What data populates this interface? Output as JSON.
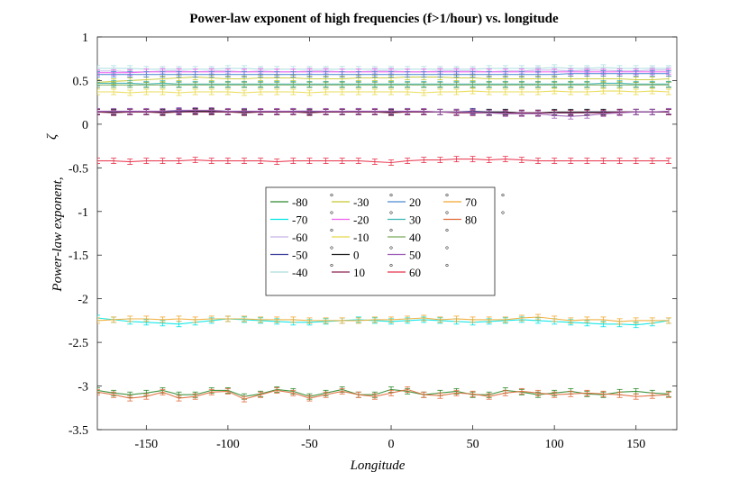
{
  "chart_data": {
    "type": "line",
    "title": "Power-law exponent of high frequencies (f>1/hour) vs. longitude",
    "xlabel": "Longitude",
    "ylabel_main": "Power-law exponent,",
    "ylabel_symbol": "ζ",
    "xlim": [
      -180,
      175
    ],
    "ylim": [
      -3.5,
      1
    ],
    "x_ticks": [
      -150,
      -100,
      -50,
      0,
      50,
      100,
      150
    ],
    "y_ticks": [
      1,
      0.5,
      0,
      -0.5,
      -1,
      -1.5,
      -2,
      -2.5,
      -3,
      -3.5
    ],
    "x": [
      -180,
      -170,
      -160,
      -150,
      -140,
      -130,
      -120,
      -110,
      -100,
      -90,
      -80,
      -70,
      -60,
      -50,
      -40,
      -30,
      -20,
      -10,
      0,
      10,
      20,
      30,
      40,
      50,
      60,
      70,
      80,
      90,
      100,
      110,
      120,
      130,
      140,
      150,
      160,
      170
    ],
    "legend": {
      "location": "inside-center",
      "columns": 4,
      "degree_symbol": "°"
    },
    "series": [
      {
        "name": "-80",
        "color": "#2e8b2e",
        "values": [
          -3.05,
          -3.08,
          -3.1,
          -3.08,
          -3.05,
          -3.1,
          -3.1,
          -3.05,
          -3.05,
          -3.12,
          -3.09,
          -3.04,
          -3.06,
          -3.12,
          -3.08,
          -3.04,
          -3.1,
          -3.1,
          -3.04,
          -3.06,
          -3.1,
          -3.08,
          -3.06,
          -3.1,
          -3.1,
          -3.05,
          -3.07,
          -3.1,
          -3.08,
          -3.06,
          -3.09,
          -3.1,
          -3.07,
          -3.06,
          -3.08,
          -3.09
        ]
      },
      {
        "name": "-70",
        "color": "#00e5e5",
        "values": [
          -2.22,
          -2.24,
          -2.26,
          -2.27,
          -2.28,
          -2.29,
          -2.27,
          -2.25,
          -2.23,
          -2.24,
          -2.25,
          -2.26,
          -2.27,
          -2.27,
          -2.26,
          -2.25,
          -2.24,
          -2.25,
          -2.26,
          -2.25,
          -2.24,
          -2.25,
          -2.26,
          -2.27,
          -2.26,
          -2.25,
          -2.24,
          -2.25,
          -2.26,
          -2.27,
          -2.28,
          -2.29,
          -2.29,
          -2.3,
          -2.28,
          -2.25
        ]
      },
      {
        "name": "-60",
        "color": "#c8b2e8",
        "values": [
          0.61,
          0.61,
          0.6,
          0.6,
          0.61,
          0.61,
          0.6,
          0.61,
          0.61,
          0.6,
          0.61,
          0.6,
          0.6,
          0.61,
          0.61,
          0.6,
          0.6,
          0.61,
          0.61,
          0.6,
          0.6,
          0.61,
          0.61,
          0.61,
          0.6,
          0.61,
          0.61,
          0.62,
          0.62,
          0.61,
          0.62,
          0.62,
          0.61,
          0.61,
          0.62,
          0.62
        ]
      },
      {
        "name": "-50",
        "color": "#3b3b9a",
        "values": [
          0.14,
          0.14,
          0.15,
          0.14,
          0.14,
          0.15,
          0.15,
          0.14,
          0.14,
          0.15,
          0.14,
          0.14,
          0.15,
          0.15,
          0.14,
          0.14,
          0.15,
          0.14,
          0.14,
          0.15,
          0.14,
          0.14,
          0.14,
          0.15,
          0.14,
          0.14,
          0.13,
          0.13,
          0.13,
          0.13,
          0.14,
          0.14,
          0.14,
          0.14,
          0.14,
          0.14
        ]
      },
      {
        "name": "-40",
        "color": "#aadddd",
        "values": [
          0.64,
          0.64,
          0.64,
          0.63,
          0.63,
          0.63,
          0.63,
          0.63,
          0.64,
          0.64,
          0.63,
          0.63,
          0.63,
          0.63,
          0.63,
          0.63,
          0.63,
          0.63,
          0.63,
          0.63,
          0.63,
          0.63,
          0.63,
          0.63,
          0.64,
          0.64,
          0.64,
          0.64,
          0.65,
          0.64,
          0.64,
          0.65,
          0.64,
          0.64,
          0.64,
          0.64
        ]
      },
      {
        "name": "-30",
        "color": "#c8c832",
        "values": [
          0.48,
          0.49,
          0.5,
          0.51,
          0.52,
          0.53,
          0.54,
          0.53,
          0.52,
          0.52,
          0.53,
          0.53,
          0.53,
          0.52,
          0.52,
          0.52,
          0.53,
          0.53,
          0.53,
          0.54,
          0.54,
          0.54,
          0.53,
          0.53,
          0.52,
          0.52,
          0.52,
          0.52,
          0.52,
          0.52,
          0.52,
          0.52,
          0.52,
          0.51,
          0.51,
          0.52
        ]
      },
      {
        "name": "-20",
        "color": "#ee60ee",
        "values": [
          0.59,
          0.59,
          0.59,
          0.6,
          0.6,
          0.6,
          0.6,
          0.6,
          0.6,
          0.6,
          0.6,
          0.6,
          0.6,
          0.6,
          0.6,
          0.6,
          0.6,
          0.6,
          0.6,
          0.6,
          0.6,
          0.6,
          0.6,
          0.6,
          0.6,
          0.6,
          0.6,
          0.6,
          0.6,
          0.6,
          0.6,
          0.6,
          0.6,
          0.6,
          0.6,
          0.6
        ]
      },
      {
        "name": "-10",
        "color": "#e8d84a",
        "values": [
          0.37,
          0.37,
          0.36,
          0.37,
          0.37,
          0.36,
          0.37,
          0.37,
          0.37,
          0.36,
          0.37,
          0.37,
          0.37,
          0.36,
          0.37,
          0.37,
          0.37,
          0.37,
          0.37,
          0.37,
          0.36,
          0.37,
          0.37,
          0.38,
          0.37,
          0.37,
          0.37,
          0.37,
          0.38,
          0.37,
          0.37,
          0.38,
          0.38,
          0.37,
          0.38,
          0.37
        ]
      },
      {
        "name": "0",
        "color": "#1a1a1a",
        "values": [
          0.14,
          0.14,
          0.14,
          0.14,
          0.14,
          0.14,
          0.15,
          0.15,
          0.14,
          0.14,
          0.14,
          0.14,
          0.14,
          0.14,
          0.14,
          0.14,
          0.14,
          0.14,
          0.14,
          0.14,
          0.14,
          0.14,
          0.14,
          0.14,
          0.14,
          0.14,
          0.13,
          0.13,
          0.14,
          0.14,
          0.14,
          0.14,
          0.14,
          0.14,
          0.14,
          0.14
        ]
      },
      {
        "name": "10",
        "color": "#8b2252",
        "values": [
          0.14,
          0.13,
          0.14,
          0.14,
          0.13,
          0.14,
          0.14,
          0.14,
          0.14,
          0.13,
          0.14,
          0.14,
          0.14,
          0.13,
          0.14,
          0.14,
          0.14,
          0.14,
          0.13,
          0.14,
          0.14,
          0.14,
          0.13,
          0.13,
          0.13,
          0.13,
          0.13,
          0.13,
          0.13,
          0.13,
          0.13,
          0.13,
          0.14,
          0.14,
          0.14,
          0.14
        ]
      },
      {
        "name": "20",
        "color": "#4a8ad0",
        "values": [
          0.57,
          0.57,
          0.57,
          0.57,
          0.57,
          0.57,
          0.57,
          0.57,
          0.57,
          0.57,
          0.57,
          0.57,
          0.57,
          0.57,
          0.57,
          0.57,
          0.57,
          0.57,
          0.57,
          0.57,
          0.57,
          0.57,
          0.57,
          0.57,
          0.57,
          0.57,
          0.57,
          0.57,
          0.57,
          0.58,
          0.58,
          0.58,
          0.58,
          0.58,
          0.58,
          0.58
        ]
      },
      {
        "name": "30",
        "color": "#3cb4b4",
        "values": [
          0.47,
          0.47,
          0.47,
          0.46,
          0.47,
          0.46,
          0.46,
          0.46,
          0.46,
          0.46,
          0.46,
          0.46,
          0.46,
          0.46,
          0.46,
          0.46,
          0.46,
          0.46,
          0.46,
          0.46,
          0.46,
          0.46,
          0.46,
          0.46,
          0.46,
          0.46,
          0.46,
          0.46,
          0.46,
          0.46,
          0.46,
          0.47,
          0.47,
          0.46,
          0.46,
          0.46
        ]
      },
      {
        "name": "40",
        "color": "#7aaa5a",
        "values": [
          0.45,
          0.45,
          0.45,
          0.45,
          0.45,
          0.45,
          0.45,
          0.45,
          0.45,
          0.45,
          0.45,
          0.45,
          0.45,
          0.45,
          0.45,
          0.45,
          0.45,
          0.45,
          0.45,
          0.45,
          0.45,
          0.45,
          0.45,
          0.45,
          0.45,
          0.45,
          0.45,
          0.45,
          0.45,
          0.45,
          0.45,
          0.45,
          0.45,
          0.45,
          0.45,
          0.45
        ]
      },
      {
        "name": "50",
        "color": "#9a5ab4",
        "values": [
          0.15,
          0.15,
          0.15,
          0.15,
          0.15,
          0.16,
          0.16,
          0.16,
          0.15,
          0.15,
          0.15,
          0.15,
          0.15,
          0.15,
          0.15,
          0.15,
          0.15,
          0.15,
          0.15,
          0.15,
          0.15,
          0.14,
          0.14,
          0.14,
          0.13,
          0.12,
          0.12,
          0.12,
          0.1,
          0.09,
          0.1,
          0.12,
          0.13,
          0.14,
          0.14,
          0.15
        ]
      },
      {
        "name": "60",
        "color": "#e8324a",
        "values": [
          -0.42,
          -0.42,
          -0.43,
          -0.42,
          -0.42,
          -0.42,
          -0.41,
          -0.42,
          -0.42,
          -0.42,
          -0.42,
          -0.43,
          -0.42,
          -0.42,
          -0.42,
          -0.42,
          -0.42,
          -0.43,
          -0.44,
          -0.42,
          -0.41,
          -0.41,
          -0.4,
          -0.4,
          -0.41,
          -0.4,
          -0.41,
          -0.42,
          -0.42,
          -0.42,
          -0.42,
          -0.42,
          -0.42,
          -0.42,
          -0.42,
          -0.42
        ]
      },
      {
        "name": "70",
        "color": "#f0a830",
        "values": [
          -2.25,
          -2.24,
          -2.23,
          -2.23,
          -2.24,
          -2.23,
          -2.24,
          -2.23,
          -2.23,
          -2.23,
          -2.24,
          -2.24,
          -2.24,
          -2.25,
          -2.25,
          -2.25,
          -2.25,
          -2.24,
          -2.24,
          -2.23,
          -2.22,
          -2.24,
          -2.23,
          -2.24,
          -2.24,
          -2.24,
          -2.22,
          -2.21,
          -2.23,
          -2.25,
          -2.24,
          -2.24,
          -2.26,
          -2.25,
          -2.25,
          -2.25
        ]
      },
      {
        "name": "80",
        "color": "#e06a3a",
        "values": [
          -3.07,
          -3.1,
          -3.14,
          -3.12,
          -3.07,
          -3.14,
          -3.12,
          -3.07,
          -3.06,
          -3.15,
          -3.1,
          -3.05,
          -3.08,
          -3.14,
          -3.1,
          -3.06,
          -3.1,
          -3.12,
          -3.08,
          -3.04,
          -3.1,
          -3.11,
          -3.08,
          -3.09,
          -3.12,
          -3.08,
          -3.06,
          -3.08,
          -3.1,
          -3.09,
          -3.08,
          -3.09,
          -3.1,
          -3.12,
          -3.11,
          -3.1
        ]
      }
    ]
  }
}
